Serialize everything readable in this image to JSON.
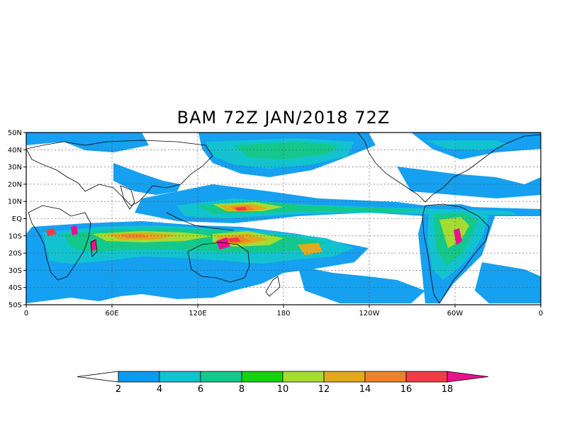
{
  "title": "BAM 72Z JAN/2018 72Z",
  "map": {
    "lat_labels": [
      "50N",
      "40N",
      "30N",
      "20N",
      "10N",
      "EQ",
      "10S",
      "20S",
      "30S",
      "40S",
      "50S"
    ],
    "lon_labels": [
      "0",
      "60E",
      "120E",
      "180",
      "120W",
      "60W",
      "0"
    ],
    "grid_lines": "dotted"
  },
  "colorbar": {
    "levels": [
      "2",
      "4",
      "6",
      "8",
      "10",
      "12",
      "14",
      "16",
      "18"
    ],
    "colors": [
      "#ffffff",
      "#0a9bf0",
      "#12c3cf",
      "#14c88b",
      "#16d20e",
      "#a5dc32",
      "#e0a91e",
      "#f0822a",
      "#f03c46",
      "#e6148c"
    ]
  }
}
